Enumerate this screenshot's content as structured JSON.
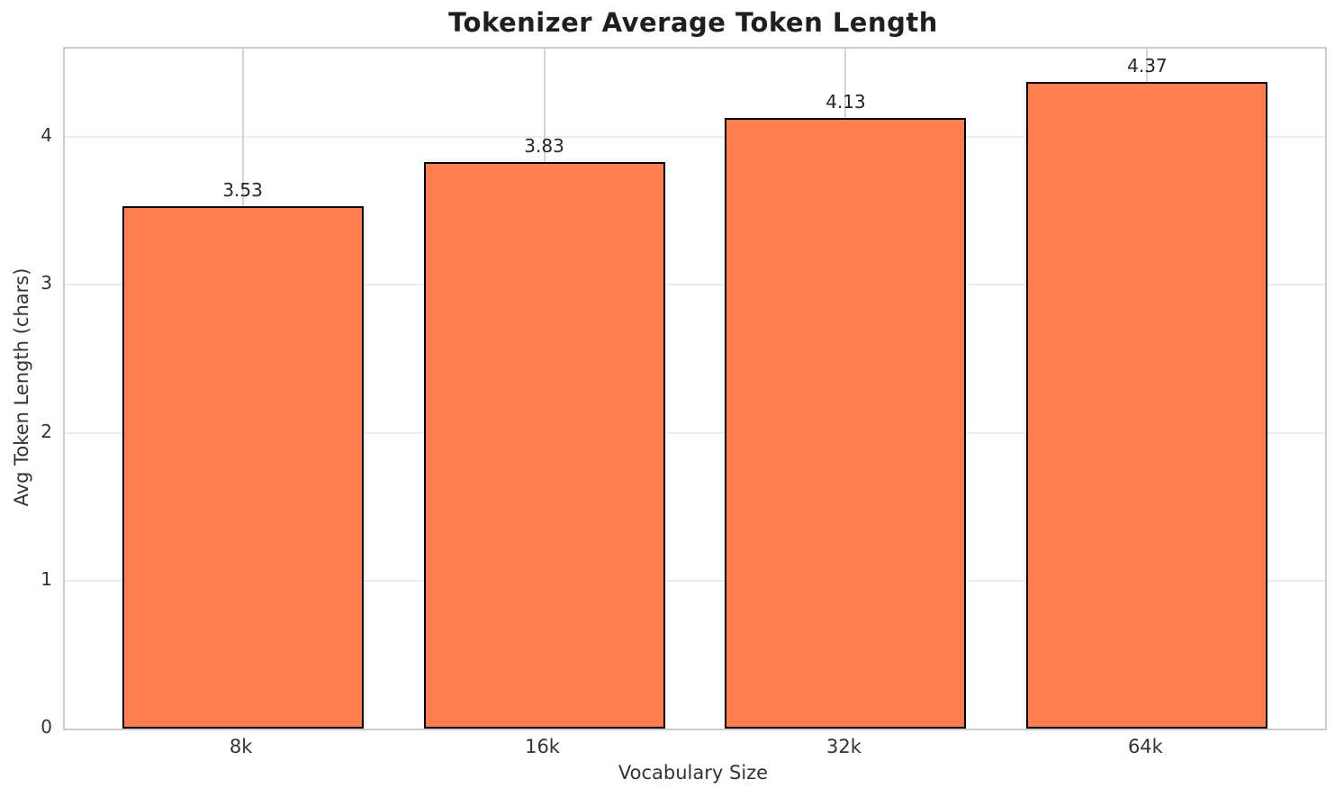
{
  "chart_data": {
    "type": "bar",
    "title": "Tokenizer Average Token Length",
    "xlabel": "Vocabulary Size",
    "ylabel": "Avg Token Length (chars)",
    "categories": [
      "8k",
      "16k",
      "32k",
      "64k"
    ],
    "values": [
      3.53,
      3.83,
      4.13,
      4.37
    ],
    "bar_labels": [
      "3.53",
      "3.83",
      "4.13",
      "4.37"
    ],
    "yticks": [
      0,
      1,
      2,
      3,
      4
    ],
    "ylim": [
      0,
      4.597
    ],
    "xlim": [
      -0.59,
      3.59
    ],
    "bar_width_units": 0.8,
    "grid": true,
    "legend": "none",
    "colors": {
      "bar_fill": "#FF7F50",
      "bar_edge": "#000000",
      "h_grid": "#ececec",
      "v_grid": "#d6d6d6",
      "spine": "#cccccc",
      "title_text": "#1f1f1f",
      "tick_text": "#333333",
      "value_text": "#262626"
    }
  }
}
